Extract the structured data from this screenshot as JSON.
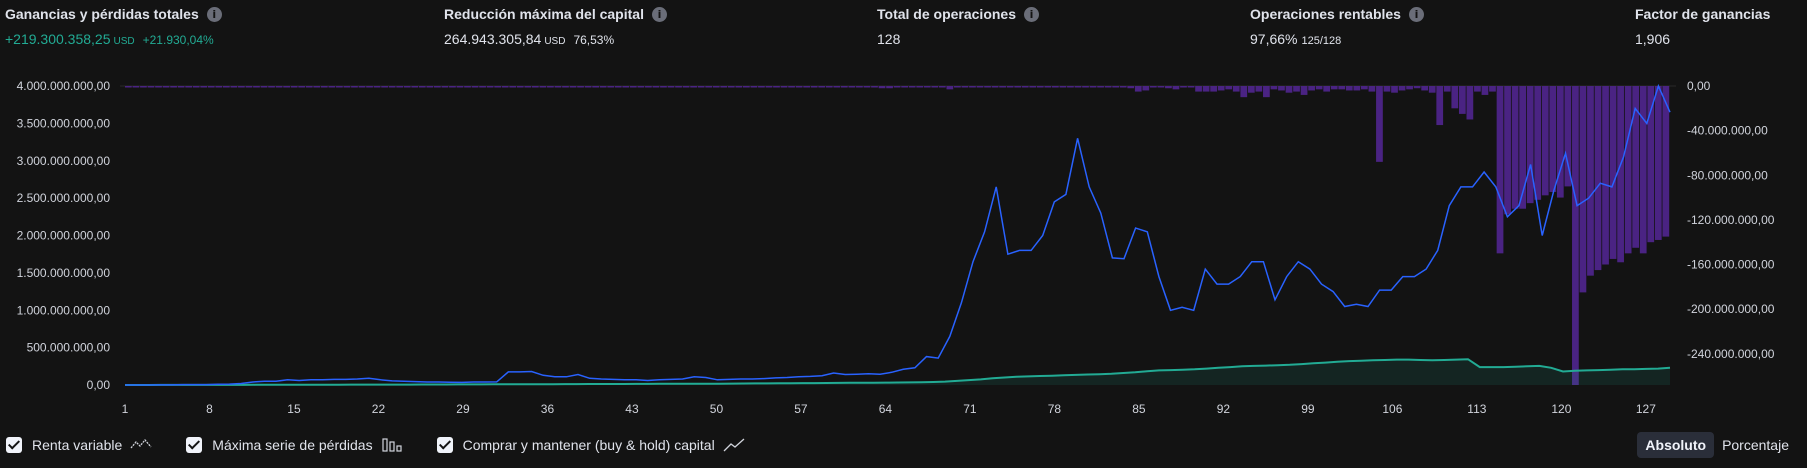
{
  "stats": [
    {
      "title": "Ganancias y pérdidas totales",
      "value": "+219.300.358,25",
      "unit": "USD",
      "extra": "+21.930,04%",
      "positive": true
    },
    {
      "title": "Reducción máxima del capital",
      "value": "264.943.305,84",
      "unit": "USD",
      "extra": "76,53%"
    },
    {
      "title": "Total de operaciones",
      "value": "128"
    },
    {
      "title": "Operaciones rentables",
      "value": "97,66%",
      "ratio": "125/128"
    },
    {
      "title": "Factor de ganancias",
      "value": "1,906"
    }
  ],
  "legend": [
    {
      "label": "Renta variable",
      "icon": "equity-line-icon"
    },
    {
      "label": "Máxima serie de pérdidas",
      "icon": "drawdown-bars-icon"
    },
    {
      "label": "Comprar y mantener (buy & hold) capital",
      "icon": "buy-hold-line-icon"
    }
  ],
  "toggle": {
    "absolute": "Absoluto",
    "percent": "Porcentaje"
  },
  "colors": {
    "equity": "#2962ff",
    "buy_hold": "#22ab94",
    "drawdown": "#4a2383",
    "background": "#131313"
  },
  "chart_data": {
    "type": "line",
    "x_ticks": [
      "1",
      "8",
      "15",
      "22",
      "29",
      "36",
      "43",
      "50",
      "57",
      "64",
      "71",
      "78",
      "85",
      "92",
      "99",
      "106",
      "113",
      "120",
      "127"
    ],
    "x_range": [
      1,
      129
    ],
    "left_axis": {
      "ticks": [
        "4.000.000.000,00",
        "3.500.000.000,00",
        "3.000.000.000,00",
        "2.500.000.000,00",
        "2.000.000.000,00",
        "1.500.000.000,00",
        "1.000.000.000,00",
        "500.000.000,00",
        "0,00"
      ],
      "range": [
        0,
        4000000000
      ]
    },
    "right_axis": {
      "ticks": [
        "0,00",
        "-40.000.000,00",
        "-80.000.000,00",
        "-120.000.000,00",
        "-160.000.000,00",
        "-200.000.000,00",
        "-240.000.000,00"
      ],
      "range": [
        -268000000,
        0
      ]
    },
    "series": [
      {
        "id": "equity",
        "axis": "left",
        "unit": "M",
        "values": [
          0,
          0,
          0,
          2,
          2,
          5,
          5,
          5,
          10,
          12,
          20,
          40,
          50,
          50,
          70,
          60,
          70,
          70,
          75,
          75,
          80,
          90,
          70,
          55,
          50,
          45,
          40,
          40,
          38,
          35,
          40,
          40,
          42,
          175,
          175,
          180,
          130,
          110,
          110,
          140,
          90,
          80,
          75,
          70,
          70,
          60,
          70,
          75,
          80,
          110,
          100,
          70,
          75,
          80,
          80,
          85,
          95,
          100,
          110,
          115,
          125,
          160,
          140,
          145,
          150,
          145,
          170,
          210,
          230,
          380,
          360,
          650,
          1100,
          1650,
          2050,
          2650,
          1750,
          1800,
          1800,
          2000,
          2450,
          2550,
          3300,
          2650,
          2300,
          1700,
          1690,
          2100,
          2050,
          1450,
          1000,
          1040,
          1000,
          1550,
          1350,
          1350,
          1450,
          1650,
          1650,
          1140,
          1450,
          1650,
          1550,
          1350,
          1250,
          1050,
          1080,
          1050,
          1270,
          1270,
          1450,
          1450,
          1550,
          1800,
          2400,
          2650,
          2650,
          2850,
          2650,
          2250,
          2400,
          2950,
          2000,
          2600,
          3100,
          2400,
          2500,
          2700,
          2650,
          3050,
          3700,
          3500,
          4000,
          3650
        ]
      },
      {
        "id": "buy_hold",
        "axis": "left",
        "unit": "M",
        "values": [
          0,
          0,
          0,
          1,
          1,
          1,
          1,
          2,
          2,
          2,
          2,
          3,
          3,
          3,
          3,
          4,
          4,
          4,
          4,
          5,
          5,
          5,
          6,
          6,
          6,
          7,
          7,
          7,
          8,
          8,
          8,
          9,
          9,
          10,
          10,
          11,
          11,
          12,
          12,
          13,
          13,
          14,
          14,
          15,
          15,
          16,
          16,
          17,
          17,
          18,
          18,
          19,
          20,
          21,
          22,
          23,
          24,
          25,
          26,
          27,
          28,
          29,
          30,
          31,
          32,
          33,
          35,
          37,
          40,
          45,
          55,
          65,
          75,
          90,
          100,
          110,
          115,
          120,
          125,
          130,
          135,
          140,
          145,
          150,
          160,
          170,
          185,
          195,
          200,
          205,
          210,
          220,
          230,
          240,
          250,
          255,
          260,
          265,
          270,
          280,
          290,
          300,
          310,
          320,
          325,
          330,
          335,
          340,
          340,
          335,
          330,
          335,
          340,
          345,
          240,
          240,
          240,
          245,
          250,
          255,
          230,
          180,
          190,
          195,
          200,
          205,
          210,
          210,
          215,
          220,
          230
        ]
      },
      {
        "id": "drawdown",
        "axis": "right",
        "unit": "M",
        "values": [
          0,
          0,
          0,
          -1,
          0,
          0,
          -1,
          0,
          0,
          0,
          -1,
          0,
          0,
          0,
          0,
          -1,
          0,
          0,
          0,
          -1,
          0,
          0,
          0,
          0,
          0,
          -1,
          0,
          0,
          0,
          0,
          0,
          0,
          0,
          0,
          0,
          0,
          0,
          0,
          0,
          0,
          0,
          0,
          0,
          0,
          0,
          0,
          -1,
          0,
          0,
          0,
          0,
          0,
          0,
          0,
          0,
          0,
          0,
          0,
          0,
          0,
          0,
          0,
          0,
          0,
          0,
          0,
          0,
          0,
          0,
          0,
          0,
          0,
          0,
          0,
          0,
          0,
          0,
          0,
          0,
          0,
          0,
          0,
          0,
          0,
          0,
          0,
          0,
          0,
          0,
          0,
          0,
          0,
          0,
          0,
          0,
          0,
          0,
          0,
          0,
          0,
          -2,
          -2,
          0,
          -1,
          0,
          0,
          0,
          0,
          0,
          -3,
          0,
          0,
          0,
          0,
          0,
          0,
          0,
          0,
          0,
          0,
          0,
          0,
          0,
          0,
          0,
          0,
          -1,
          0,
          0,
          0,
          0,
          0,
          0,
          -2,
          -5,
          -4,
          0,
          0,
          -2,
          -3,
          0,
          0,
          -5,
          -5,
          -5,
          -4,
          -3,
          -5,
          -10,
          -6,
          -5,
          -10,
          -3,
          -4,
          -6,
          -5,
          -8,
          -4,
          -3,
          -5,
          -3,
          -3,
          -4,
          -4,
          -3,
          -5,
          -68,
          -5,
          -6,
          -4,
          -3,
          -2,
          -4,
          -6,
          -35,
          -5,
          -20,
          -25,
          -30,
          -5,
          -8,
          -5,
          -150,
          -115,
          -110,
          -110,
          -105,
          -102,
          -98,
          -95,
          -100,
          -90,
          -268,
          -185,
          -170,
          -165,
          -160,
          -155,
          -158,
          -150,
          -145,
          -150,
          -140,
          -138,
          -135
        ]
      }
    ]
  }
}
